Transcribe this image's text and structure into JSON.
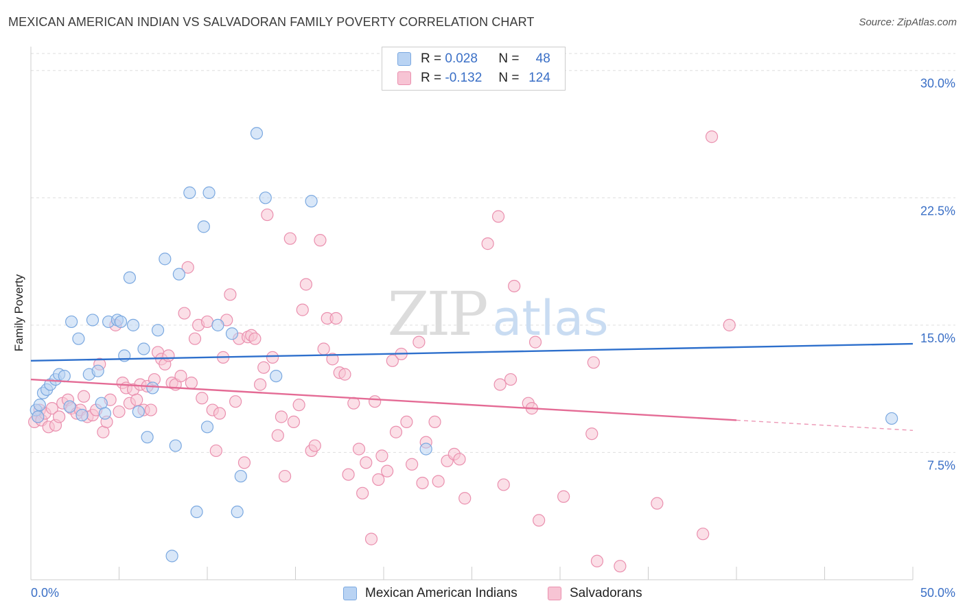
{
  "title": "MEXICAN AMERICAN INDIAN VS SALVADORAN FAMILY POVERTY CORRELATION CHART",
  "source": "Source: ZipAtlas.com",
  "watermark": {
    "zip": "ZIP",
    "atlas": "atlas"
  },
  "colors": {
    "blue_fill": "#b9d3f3",
    "blue_stroke": "#7aa8e0",
    "blue_line": "#2d6fcc",
    "pink_fill": "#f7c4d4",
    "pink_stroke": "#ea8fae",
    "pink_line": "#e46b95",
    "axis_label": "#3a6fc6",
    "grid": "#dddddd"
  },
  "legend": {
    "rows": [
      {
        "r_label": "R =",
        "r_value": "0.028",
        "n_label": "N =",
        "n_value": "48"
      },
      {
        "r_label": "R =",
        "r_value": "-0.132",
        "n_label": "N =",
        "n_value": "124"
      }
    ]
  },
  "chart_data": {
    "type": "scatter",
    "ylabel": "Family Poverty",
    "xlim": [
      0,
      50
    ],
    "ylim": [
      0,
      31
    ],
    "x_tick_labels": [
      "0.0%",
      "50.0%"
    ],
    "y_ticks": [
      7.5,
      15.0,
      22.5,
      30.0
    ],
    "y_tick_labels": [
      "7.5%",
      "15.0%",
      "22.5%",
      "30.0%"
    ],
    "grid": true,
    "legend_position": "top-center",
    "series": [
      {
        "name": "Mexican American Indians",
        "color": "#b9d3f3",
        "trend": {
          "x": [
            0,
            50
          ],
          "y": [
            12.9,
            13.9
          ]
        },
        "points": [
          [
            0.3,
            10.0
          ],
          [
            0.4,
            9.6
          ],
          [
            0.5,
            10.3
          ],
          [
            0.7,
            11.0
          ],
          [
            0.9,
            11.2
          ],
          [
            1.1,
            11.5
          ],
          [
            1.4,
            11.8
          ],
          [
            1.6,
            12.1
          ],
          [
            1.9,
            12.0
          ],
          [
            2.3,
            15.2
          ],
          [
            2.7,
            14.2
          ],
          [
            2.2,
            10.2
          ],
          [
            2.9,
            9.7
          ],
          [
            3.3,
            12.1
          ],
          [
            3.5,
            15.3
          ],
          [
            3.8,
            12.3
          ],
          [
            4.0,
            10.4
          ],
          [
            4.2,
            9.8
          ],
          [
            4.4,
            15.2
          ],
          [
            4.9,
            15.3
          ],
          [
            5.1,
            15.2
          ],
          [
            5.3,
            13.2
          ],
          [
            5.6,
            17.8
          ],
          [
            5.8,
            15.0
          ],
          [
            6.1,
            9.9
          ],
          [
            6.4,
            13.6
          ],
          [
            6.6,
            8.4
          ],
          [
            6.9,
            11.3
          ],
          [
            7.2,
            14.7
          ],
          [
            7.6,
            18.9
          ],
          [
            8.0,
            1.4
          ],
          [
            8.2,
            7.9
          ],
          [
            8.4,
            18.0
          ],
          [
            9.0,
            22.8
          ],
          [
            9.4,
            4.0
          ],
          [
            9.8,
            20.8
          ],
          [
            10.0,
            9.0
          ],
          [
            10.1,
            22.8
          ],
          [
            10.6,
            15.0
          ],
          [
            11.4,
            14.5
          ],
          [
            11.7,
            4.0
          ],
          [
            11.9,
            6.1
          ],
          [
            12.8,
            26.3
          ],
          [
            13.3,
            22.5
          ],
          [
            13.9,
            12.0
          ],
          [
            15.9,
            22.3
          ],
          [
            22.4,
            7.7
          ],
          [
            48.8,
            9.5
          ]
        ]
      },
      {
        "name": "Salvadorans",
        "color": "#f7c4d4",
        "trend": {
          "x": [
            0,
            40
          ],
          "y": [
            11.8,
            9.4
          ]
        },
        "trend_dashed": {
          "x": [
            40,
            50
          ],
          "y": [
            9.4,
            8.8
          ]
        },
        "points": [
          [
            0.2,
            9.3
          ],
          [
            0.4,
            9.6
          ],
          [
            0.5,
            10.0
          ],
          [
            0.6,
            9.4
          ],
          [
            0.8,
            9.8
          ],
          [
            1.0,
            9.0
          ],
          [
            1.2,
            10.1
          ],
          [
            1.4,
            9.1
          ],
          [
            1.6,
            9.6
          ],
          [
            1.8,
            10.4
          ],
          [
            2.1,
            10.6
          ],
          [
            2.3,
            10.1
          ],
          [
            2.6,
            9.8
          ],
          [
            2.8,
            10.0
          ],
          [
            3.0,
            10.8
          ],
          [
            3.2,
            9.6
          ],
          [
            3.5,
            9.7
          ],
          [
            3.7,
            10.0
          ],
          [
            3.9,
            12.7
          ],
          [
            4.1,
            8.7
          ],
          [
            4.3,
            9.3
          ],
          [
            4.5,
            10.6
          ],
          [
            4.8,
            15.0
          ],
          [
            5.0,
            9.9
          ],
          [
            5.2,
            11.6
          ],
          [
            5.4,
            11.3
          ],
          [
            5.6,
            10.4
          ],
          [
            5.8,
            11.2
          ],
          [
            6.0,
            10.6
          ],
          [
            6.2,
            11.5
          ],
          [
            6.4,
            10.0
          ],
          [
            6.6,
            11.4
          ],
          [
            6.8,
            10.0
          ],
          [
            7.0,
            11.8
          ],
          [
            7.2,
            13.4
          ],
          [
            7.4,
            13.0
          ],
          [
            7.6,
            12.7
          ],
          [
            7.8,
            13.2
          ],
          [
            8.0,
            11.6
          ],
          [
            8.2,
            11.5
          ],
          [
            8.5,
            12.0
          ],
          [
            8.7,
            15.7
          ],
          [
            8.9,
            18.4
          ],
          [
            9.1,
            11.6
          ],
          [
            9.3,
            14.2
          ],
          [
            9.5,
            15.0
          ],
          [
            9.7,
            10.7
          ],
          [
            10.0,
            15.2
          ],
          [
            10.3,
            10.0
          ],
          [
            10.5,
            7.6
          ],
          [
            10.7,
            9.8
          ],
          [
            10.9,
            13.1
          ],
          [
            11.1,
            15.3
          ],
          [
            11.3,
            16.8
          ],
          [
            11.6,
            10.5
          ],
          [
            11.8,
            14.2
          ],
          [
            12.1,
            6.9
          ],
          [
            12.3,
            14.3
          ],
          [
            12.5,
            14.4
          ],
          [
            12.7,
            14.2
          ],
          [
            13.0,
            11.5
          ],
          [
            13.2,
            12.5
          ],
          [
            13.4,
            21.5
          ],
          [
            13.7,
            13.1
          ],
          [
            14.0,
            8.5
          ],
          [
            14.2,
            9.6
          ],
          [
            14.4,
            6.1
          ],
          [
            14.7,
            20.1
          ],
          [
            14.9,
            9.3
          ],
          [
            15.2,
            10.3
          ],
          [
            15.4,
            15.9
          ],
          [
            15.6,
            17.4
          ],
          [
            15.9,
            7.6
          ],
          [
            16.1,
            7.9
          ],
          [
            16.4,
            20.0
          ],
          [
            16.6,
            13.6
          ],
          [
            16.8,
            15.4
          ],
          [
            17.1,
            13.0
          ],
          [
            17.3,
            15.4
          ],
          [
            17.5,
            12.2
          ],
          [
            17.8,
            12.1
          ],
          [
            18.0,
            6.2
          ],
          [
            18.3,
            10.4
          ],
          [
            18.6,
            7.7
          ],
          [
            18.8,
            5.1
          ],
          [
            19.0,
            6.9
          ],
          [
            19.3,
            2.4
          ],
          [
            19.5,
            10.5
          ],
          [
            19.7,
            5.9
          ],
          [
            19.9,
            7.3
          ],
          [
            20.2,
            6.4
          ],
          [
            20.5,
            12.9
          ],
          [
            20.7,
            8.7
          ],
          [
            21.0,
            13.3
          ],
          [
            21.3,
            9.3
          ],
          [
            21.6,
            6.8
          ],
          [
            22.0,
            14.0
          ],
          [
            22.2,
            5.7
          ],
          [
            22.4,
            8.1
          ],
          [
            22.9,
            9.3
          ],
          [
            23.1,
            5.8
          ],
          [
            23.6,
            7.0
          ],
          [
            24.0,
            7.4
          ],
          [
            24.3,
            7.1
          ],
          [
            24.6,
            4.8
          ],
          [
            25.9,
            19.8
          ],
          [
            26.5,
            21.4
          ],
          [
            26.6,
            11.5
          ],
          [
            26.8,
            5.6
          ],
          [
            27.2,
            11.8
          ],
          [
            27.4,
            17.3
          ],
          [
            28.2,
            10.4
          ],
          [
            28.4,
            10.1
          ],
          [
            28.6,
            14.0
          ],
          [
            28.8,
            3.5
          ],
          [
            30.2,
            4.9
          ],
          [
            31.8,
            8.6
          ],
          [
            31.9,
            12.8
          ],
          [
            32.1,
            1.1
          ],
          [
            33.4,
            0.8
          ],
          [
            35.5,
            4.5
          ],
          [
            38.1,
            2.7
          ],
          [
            38.6,
            26.1
          ],
          [
            39.6,
            15.0
          ]
        ]
      }
    ]
  }
}
